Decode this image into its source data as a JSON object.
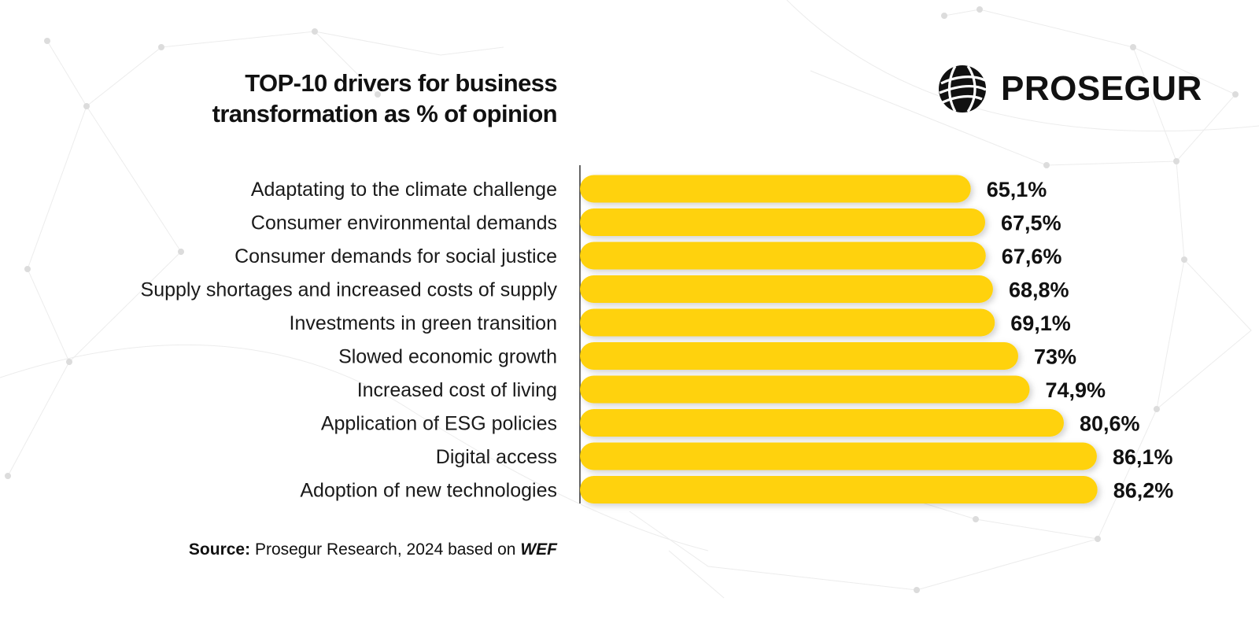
{
  "title": {
    "line1": "TOP-10 drivers for business",
    "line2": "transformation as % of opinion"
  },
  "brand": {
    "name": "PROSEGUR",
    "icon": "globe-icon"
  },
  "colors": {
    "bar": "#FFD20A",
    "text": "#111111",
    "background": "#FFFFFF"
  },
  "source": {
    "label": "Source:",
    "text": "Prosegur Research, 2024 based on",
    "emphasis": "WEF"
  },
  "chart_data": {
    "type": "bar",
    "orientation": "horizontal",
    "title": "TOP-10 drivers for business transformation as % of opinion",
    "xlabel": "",
    "ylabel": "",
    "grid": false,
    "categories": [
      "Adaptating to the climate challenge",
      "Consumer environmental demands",
      "Consumer demands for social justice",
      "Supply shortages and increased costs of supply",
      "Investments in green transition",
      "Slowed economic growth",
      "Increased cost of living",
      "Application of ESG policies",
      "Digital access",
      "Adoption of new technologies"
    ],
    "values": [
      65.1,
      67.5,
      67.6,
      68.8,
      69.1,
      73,
      74.9,
      80.6,
      86.1,
      86.2
    ],
    "value_labels": [
      "65,1%",
      "67,5%",
      "67,6%",
      "68,8%",
      "69,1%",
      "73%",
      "74,9%",
      "80,6%",
      "86,1%",
      "86,2%"
    ],
    "xlim": [
      0,
      100
    ]
  }
}
